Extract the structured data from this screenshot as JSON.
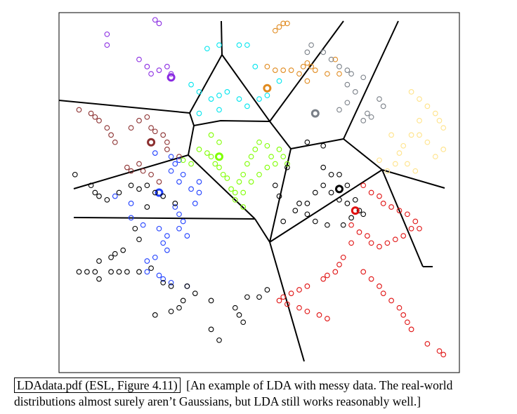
{
  "caption": {
    "label": "LDAdata.pdf (ESL, Figure 4.11)",
    "text": "[An example of LDA with messy data.  The real-world distributions almost surely aren’t Gaussians, but LDA still works reasonably well.]"
  },
  "chart_data": {
    "type": "scatter",
    "title": "",
    "xlabel": "",
    "ylabel": "",
    "xlim": [
      0,
      100
    ],
    "ylim": [
      0,
      100
    ],
    "grid": false,
    "legend": "none",
    "marker": "circle-open",
    "series": [
      {
        "color": "#8a2be2",
        "points": [
          [
            12,
            94
          ],
          [
            12,
            91
          ],
          [
            24,
            98
          ],
          [
            25,
            97
          ],
          [
            20,
            87
          ],
          [
            22,
            85
          ],
          [
            23,
            83
          ],
          [
            25,
            84
          ],
          [
            27,
            85
          ],
          [
            28,
            83
          ]
        ],
        "centroid": [
          28,
          82
        ]
      },
      {
        "color": "#00e5ee",
        "points": [
          [
            37,
            90
          ],
          [
            40,
            91
          ],
          [
            45,
            91
          ],
          [
            47,
            91
          ],
          [
            33,
            80
          ],
          [
            35,
            78
          ],
          [
            38,
            76
          ],
          [
            40,
            77
          ],
          [
            42,
            78
          ],
          [
            45,
            76
          ],
          [
            47,
            74
          ],
          [
            50,
            76
          ],
          [
            52,
            77
          ],
          [
            55,
            81
          ],
          [
            49,
            85
          ],
          [
            35,
            72
          ],
          [
            40,
            73
          ]
        ],
        "centroid": null
      },
      {
        "color": "#e08a1e",
        "points": [
          [
            54,
            95
          ],
          [
            55,
            96
          ],
          [
            56,
            97
          ],
          [
            57,
            97
          ],
          [
            52,
            85
          ],
          [
            54,
            84
          ],
          [
            56,
            84
          ],
          [
            58,
            84
          ],
          [
            60,
            83
          ],
          [
            61,
            85
          ],
          [
            62,
            86
          ],
          [
            63,
            85
          ],
          [
            64,
            84
          ],
          [
            67,
            83
          ],
          [
            69,
            87
          ],
          [
            70,
            83
          ],
          [
            62,
            81
          ]
        ],
        "centroid": [
          52,
          79
        ]
      },
      {
        "color": "#7a8088",
        "points": [
          [
            62,
            89
          ],
          [
            63,
            91
          ],
          [
            66,
            89
          ],
          [
            68,
            87
          ],
          [
            70,
            85
          ],
          [
            72,
            84
          ],
          [
            73,
            83
          ],
          [
            76,
            82
          ],
          [
            74,
            78
          ],
          [
            72,
            75
          ],
          [
            70,
            73
          ],
          [
            77,
            72
          ],
          [
            78,
            71
          ],
          [
            80,
            76
          ],
          [
            81,
            74
          ],
          [
            72,
            80
          ],
          [
            76,
            70
          ]
        ],
        "centroid": [
          64,
          72
        ]
      },
      {
        "color": "#ffe38a",
        "points": [
          [
            88,
            78
          ],
          [
            90,
            76
          ],
          [
            92,
            74
          ],
          [
            94,
            72
          ],
          [
            95,
            70
          ],
          [
            96,
            68
          ],
          [
            90,
            70
          ],
          [
            88,
            66
          ],
          [
            86,
            63
          ],
          [
            85,
            61
          ],
          [
            84,
            58
          ],
          [
            87,
            58
          ],
          [
            89,
            56
          ],
          [
            82,
            56
          ],
          [
            80,
            59
          ],
          [
            92,
            64
          ],
          [
            94,
            60
          ],
          [
            96,
            62
          ],
          [
            83,
            66
          ],
          [
            90,
            66
          ]
        ],
        "centroid": null
      },
      {
        "color": "#8b2f2f",
        "points": [
          [
            5,
            73
          ],
          [
            8,
            72
          ],
          [
            9,
            71
          ],
          [
            10,
            70
          ],
          [
            12,
            68
          ],
          [
            13,
            66
          ],
          [
            14,
            64
          ],
          [
            18,
            68
          ],
          [
            20,
            70
          ],
          [
            22,
            71
          ],
          [
            23,
            68
          ],
          [
            24,
            67
          ],
          [
            26,
            66
          ],
          [
            27,
            64
          ],
          [
            27,
            62
          ],
          [
            30,
            60
          ],
          [
            20,
            58
          ],
          [
            17,
            57
          ],
          [
            18,
            56
          ],
          [
            21,
            56
          ],
          [
            23,
            55
          ],
          [
            25,
            53
          ]
        ],
        "centroid": [
          23,
          64
        ]
      },
      {
        "color": "#1f3fff",
        "points": [
          [
            24,
            61
          ],
          [
            28,
            60
          ],
          [
            29,
            58
          ],
          [
            30,
            59
          ],
          [
            28,
            56
          ],
          [
            31,
            55
          ],
          [
            30,
            53
          ],
          [
            33,
            51
          ],
          [
            35,
            53
          ],
          [
            35,
            50
          ],
          [
            34,
            47
          ],
          [
            29,
            46
          ],
          [
            30,
            44
          ],
          [
            31,
            42
          ],
          [
            30,
            40
          ],
          [
            32,
            38
          ],
          [
            26,
            36
          ],
          [
            27,
            34
          ],
          [
            24,
            32
          ],
          [
            22,
            31
          ],
          [
            22,
            28
          ],
          [
            25,
            27
          ],
          [
            26,
            26
          ],
          [
            28,
            25
          ],
          [
            32,
            24
          ],
          [
            14,
            49
          ],
          [
            18,
            43
          ],
          [
            18,
            47
          ],
          [
            21,
            41
          ],
          [
            25,
            40
          ],
          [
            27,
            38
          ]
        ],
        "centroid": [
          25,
          50
        ]
      },
      {
        "color": "#7fff00",
        "points": [
          [
            31,
            59
          ],
          [
            33,
            58
          ],
          [
            35,
            62
          ],
          [
            37,
            61
          ],
          [
            38,
            60
          ],
          [
            39,
            58
          ],
          [
            40,
            57
          ],
          [
            41,
            55
          ],
          [
            42,
            54
          ],
          [
            43,
            51
          ],
          [
            44,
            50
          ],
          [
            45,
            53
          ],
          [
            46,
            55
          ],
          [
            47,
            58
          ],
          [
            48,
            60
          ],
          [
            49,
            62
          ],
          [
            50,
            64
          ],
          [
            52,
            63
          ],
          [
            53,
            60
          ],
          [
            54,
            58
          ],
          [
            55,
            62
          ],
          [
            56,
            60
          ],
          [
            57,
            58
          ],
          [
            50,
            55
          ],
          [
            52,
            57
          ],
          [
            48,
            53
          ],
          [
            46,
            50
          ],
          [
            44,
            48
          ],
          [
            46,
            46
          ],
          [
            40,
            64
          ],
          [
            38,
            66
          ]
        ],
        "centroid": [
          40,
          60
        ]
      },
      {
        "color": "#000000",
        "points": [
          [
            4,
            55
          ],
          [
            8,
            52
          ],
          [
            9,
            50
          ],
          [
            10,
            49
          ],
          [
            12,
            48
          ],
          [
            15,
            50
          ],
          [
            18,
            52
          ],
          [
            20,
            51
          ],
          [
            22,
            52
          ],
          [
            24,
            50
          ],
          [
            26,
            49
          ],
          [
            29,
            47
          ],
          [
            22,
            46
          ],
          [
            19,
            40
          ],
          [
            20,
            37
          ],
          [
            16,
            34
          ],
          [
            14,
            33
          ],
          [
            13,
            32
          ],
          [
            10,
            31
          ],
          [
            5,
            28
          ],
          [
            7,
            28
          ],
          [
            9,
            28
          ],
          [
            10,
            26
          ],
          [
            13,
            28
          ],
          [
            15,
            28
          ],
          [
            17,
            28
          ],
          [
            20,
            28
          ],
          [
            23,
            29
          ],
          [
            26,
            25
          ],
          [
            28,
            24
          ],
          [
            32,
            24
          ],
          [
            34,
            22
          ],
          [
            31,
            20
          ],
          [
            30,
            18
          ],
          [
            28,
            17
          ],
          [
            24,
            16
          ],
          [
            38,
            20
          ],
          [
            44,
            18
          ],
          [
            45,
            16
          ],
          [
            46,
            14
          ],
          [
            38,
            12
          ],
          [
            40,
            9
          ],
          [
            47,
            21
          ],
          [
            52,
            23
          ],
          [
            50,
            21
          ],
          [
            59,
            45
          ],
          [
            62,
            47
          ],
          [
            64,
            50
          ],
          [
            66,
            52
          ],
          [
            68,
            50
          ],
          [
            70,
            48
          ],
          [
            72,
            47
          ],
          [
            74,
            48
          ],
          [
            75,
            45
          ],
          [
            73,
            43
          ],
          [
            71,
            41
          ],
          [
            67,
            41
          ],
          [
            64,
            42
          ],
          [
            62,
            44
          ],
          [
            60,
            47
          ],
          [
            76,
            44
          ],
          [
            72,
            52
          ],
          [
            68,
            55
          ],
          [
            66,
            57
          ],
          [
            70,
            55
          ],
          [
            66,
            63
          ],
          [
            62,
            64
          ],
          [
            57,
            57
          ],
          [
            54,
            52
          ],
          [
            55,
            49
          ],
          [
            56,
            42
          ]
        ],
        "centroid": [
          70,
          51
        ]
      },
      {
        "color": "#e01010",
        "points": [
          [
            76,
            52
          ],
          [
            78,
            50
          ],
          [
            80,
            49
          ],
          [
            81,
            47
          ],
          [
            83,
            46
          ],
          [
            85,
            45
          ],
          [
            87,
            44
          ],
          [
            89,
            42
          ],
          [
            90,
            40
          ],
          [
            88,
            40
          ],
          [
            86,
            38
          ],
          [
            84,
            37
          ],
          [
            82,
            36
          ],
          [
            80,
            35
          ],
          [
            78,
            36
          ],
          [
            77,
            38
          ],
          [
            75,
            39
          ],
          [
            73,
            41
          ],
          [
            73,
            36
          ],
          [
            71,
            32
          ],
          [
            70,
            30
          ],
          [
            69,
            28
          ],
          [
            67,
            27
          ],
          [
            66,
            26
          ],
          [
            62,
            24
          ],
          [
            60,
            23
          ],
          [
            58,
            22
          ],
          [
            56,
            21
          ],
          [
            55,
            20
          ],
          [
            57,
            19
          ],
          [
            60,
            18
          ],
          [
            62,
            17
          ],
          [
            65,
            16
          ],
          [
            67,
            15
          ],
          [
            76,
            28
          ],
          [
            78,
            26
          ],
          [
            80,
            24
          ],
          [
            81,
            22
          ],
          [
            83,
            20
          ],
          [
            85,
            18
          ],
          [
            86,
            16
          ],
          [
            87,
            14
          ],
          [
            88,
            12
          ],
          [
            92,
            8
          ],
          [
            95,
            6
          ],
          [
            96,
            5
          ]
        ],
        "centroid": [
          74,
          45
        ]
      }
    ]
  }
}
